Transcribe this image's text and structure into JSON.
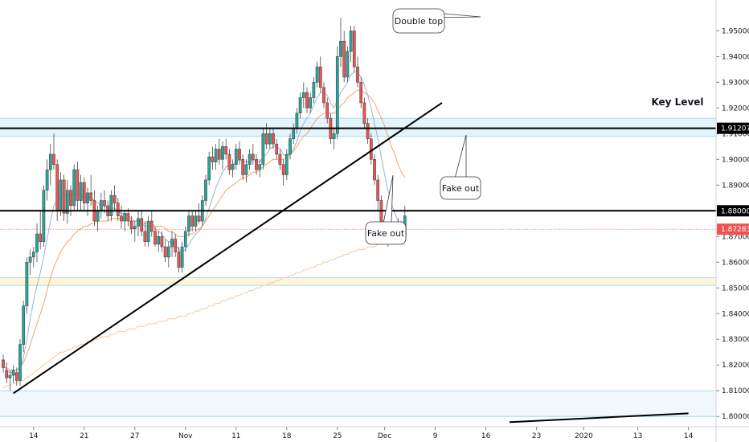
{
  "chart_data": {
    "type": "candlestick",
    "y_range": [
      1.796,
      1.962
    ],
    "y_ticks": [
      {
        "v": 1.95,
        "label": "1.95000"
      },
      {
        "v": 1.94,
        "label": "1.94000"
      },
      {
        "v": 1.93,
        "label": "1.93000"
      },
      {
        "v": 1.92,
        "label": "1.92000"
      },
      {
        "v": 1.91,
        "label": "1.91000"
      },
      {
        "v": 1.9,
        "label": "1.90000"
      },
      {
        "v": 1.89,
        "label": "1.89000"
      },
      {
        "v": 1.88,
        "label": "1.88000"
      },
      {
        "v": 1.87,
        "label": "1.87000"
      },
      {
        "v": 1.86,
        "label": "1.86000"
      },
      {
        "v": 1.85,
        "label": "1.85000"
      },
      {
        "v": 1.84,
        "label": "1.84000"
      },
      {
        "v": 1.83,
        "label": "1.83000"
      },
      {
        "v": 1.82,
        "label": "1.82000"
      },
      {
        "v": 1.81,
        "label": "1.81000"
      },
      {
        "v": 1.8,
        "label": "1.80000"
      }
    ],
    "x_ticks": [
      {
        "i": 9,
        "label": "14"
      },
      {
        "i": 24,
        "label": "21"
      },
      {
        "i": 39,
        "label": "27"
      },
      {
        "i": 54,
        "label": "Nov"
      },
      {
        "i": 69,
        "label": "11"
      },
      {
        "i": 84,
        "label": "18"
      },
      {
        "i": 99,
        "label": "25"
      },
      {
        "i": 113,
        "label": "Dec"
      },
      {
        "i": 128,
        "label": "9"
      },
      {
        "i": 143,
        "label": "16"
      },
      {
        "i": 158,
        "label": "23"
      },
      {
        "i": 172,
        "label": "2020"
      },
      {
        "i": 188,
        "label": "13"
      },
      {
        "i": 203,
        "label": "14"
      }
    ],
    "candles": [
      [
        1.822,
        1.824,
        1.817,
        1.819
      ],
      [
        1.818,
        1.821,
        1.813,
        1.815
      ],
      [
        1.815,
        1.818,
        1.81,
        1.816
      ],
      [
        1.816,
        1.82,
        1.813,
        1.818
      ],
      [
        1.817,
        1.819,
        1.812,
        1.814
      ],
      [
        1.814,
        1.83,
        1.812,
        1.828
      ],
      [
        1.828,
        1.845,
        1.825,
        1.843
      ],
      [
        1.843,
        1.862,
        1.84,
        1.86
      ],
      [
        1.86,
        1.865,
        1.855,
        1.862
      ],
      [
        1.862,
        1.866,
        1.858,
        1.864
      ],
      [
        1.864,
        1.875,
        1.86,
        1.871
      ],
      [
        1.871,
        1.88,
        1.865,
        1.868
      ],
      [
        1.868,
        1.89,
        1.866,
        1.888
      ],
      [
        1.888,
        1.9,
        1.884,
        1.896
      ],
      [
        1.896,
        1.906,
        1.89,
        1.902
      ],
      [
        1.902,
        1.91,
        1.896,
        1.898
      ],
      [
        1.898,
        1.9,
        1.876,
        1.88
      ],
      [
        1.88,
        1.895,
        1.878,
        1.892
      ],
      [
        1.892,
        1.894,
        1.876,
        1.879
      ],
      [
        1.879,
        1.892,
        1.875,
        1.888
      ],
      [
        1.888,
        1.89,
        1.878,
        1.882
      ],
      [
        1.882,
        1.898,
        1.88,
        1.896
      ],
      [
        1.896,
        1.899,
        1.88,
        1.884
      ],
      [
        1.884,
        1.894,
        1.88,
        1.891
      ],
      [
        1.891,
        1.893,
        1.88,
        1.883
      ],
      [
        1.883,
        1.889,
        1.878,
        1.887
      ],
      [
        1.887,
        1.894,
        1.882,
        1.884
      ],
      [
        1.884,
        1.888,
        1.874,
        1.876
      ],
      [
        1.876,
        1.882,
        1.872,
        1.88
      ],
      [
        1.88,
        1.887,
        1.877,
        1.884
      ],
      [
        1.884,
        1.888,
        1.879,
        1.882
      ],
      [
        1.882,
        1.884,
        1.876,
        1.878
      ],
      [
        1.878,
        1.888,
        1.876,
        1.886
      ],
      [
        1.886,
        1.89,
        1.88,
        1.883
      ],
      [
        1.883,
        1.885,
        1.876,
        1.878
      ],
      [
        1.878,
        1.882,
        1.873,
        1.876
      ],
      [
        1.876,
        1.88,
        1.872,
        1.879
      ],
      [
        1.879,
        1.881,
        1.874,
        1.876
      ],
      [
        1.876,
        1.878,
        1.871,
        1.873
      ],
      [
        1.873,
        1.876,
        1.868,
        1.874
      ],
      [
        1.874,
        1.88,
        1.87,
        1.877
      ],
      [
        1.877,
        1.88,
        1.87,
        1.872
      ],
      [
        1.872,
        1.876,
        1.866,
        1.868
      ],
      [
        1.868,
        1.878,
        1.866,
        1.876
      ],
      [
        1.876,
        1.88,
        1.87,
        1.872
      ],
      [
        1.872,
        1.874,
        1.866,
        1.867
      ],
      [
        1.867,
        1.872,
        1.864,
        1.87
      ],
      [
        1.87,
        1.872,
        1.864,
        1.866
      ],
      [
        1.866,
        1.869,
        1.86,
        1.862
      ],
      [
        1.862,
        1.868,
        1.858,
        1.866
      ],
      [
        1.866,
        1.872,
        1.862,
        1.869
      ],
      [
        1.869,
        1.871,
        1.862,
        1.864
      ],
      [
        1.864,
        1.866,
        1.856,
        1.858
      ],
      [
        1.858,
        1.868,
        1.856,
        1.866
      ],
      [
        1.866,
        1.874,
        1.864,
        1.872
      ],
      [
        1.872,
        1.88,
        1.87,
        1.878
      ],
      [
        1.878,
        1.88,
        1.872,
        1.874
      ],
      [
        1.874,
        1.88,
        1.872,
        1.878
      ],
      [
        1.878,
        1.883,
        1.875,
        1.876
      ],
      [
        1.876,
        1.886,
        1.874,
        1.884
      ],
      [
        1.884,
        1.894,
        1.882,
        1.892
      ],
      [
        1.892,
        1.903,
        1.89,
        1.901
      ],
      [
        1.901,
        1.905,
        1.896,
        1.899
      ],
      [
        1.899,
        1.906,
        1.896,
        1.904
      ],
      [
        1.904,
        1.908,
        1.898,
        1.9
      ],
      [
        1.9,
        1.907,
        1.896,
        1.905
      ],
      [
        1.905,
        1.908,
        1.9,
        1.902
      ],
      [
        1.902,
        1.904,
        1.894,
        1.896
      ],
      [
        1.896,
        1.9,
        1.893,
        1.898
      ],
      [
        1.898,
        1.906,
        1.896,
        1.904
      ],
      [
        1.904,
        1.907,
        1.898,
        1.9
      ],
      [
        1.9,
        1.902,
        1.892,
        1.894
      ],
      [
        1.894,
        1.9,
        1.891,
        1.898
      ],
      [
        1.898,
        1.904,
        1.896,
        1.902
      ],
      [
        1.902,
        1.906,
        1.898,
        1.9
      ],
      [
        1.9,
        1.902,
        1.894,
        1.896
      ],
      [
        1.896,
        1.9,
        1.893,
        1.898
      ],
      [
        1.898,
        1.912,
        1.896,
        1.91
      ],
      [
        1.91,
        1.914,
        1.904,
        1.906
      ],
      [
        1.906,
        1.912,
        1.904,
        1.91
      ],
      [
        1.91,
        1.912,
        1.904,
        1.906
      ],
      [
        1.906,
        1.908,
        1.9,
        1.902
      ],
      [
        1.902,
        1.904,
        1.896,
        1.898
      ],
      [
        1.898,
        1.9,
        1.89,
        1.894
      ],
      [
        1.894,
        1.904,
        1.892,
        1.902
      ],
      [
        1.902,
        1.91,
        1.9,
        1.908
      ],
      [
        1.908,
        1.914,
        1.906,
        1.912
      ],
      [
        1.912,
        1.92,
        1.91,
        1.918
      ],
      [
        1.918,
        1.926,
        1.916,
        1.924
      ],
      [
        1.924,
        1.93,
        1.92,
        1.926
      ],
      [
        1.926,
        1.928,
        1.918,
        1.92
      ],
      [
        1.92,
        1.926,
        1.918,
        1.924
      ],
      [
        1.924,
        1.932,
        1.922,
        1.93
      ],
      [
        1.93,
        1.938,
        1.928,
        1.936
      ],
      [
        1.936,
        1.94,
        1.926,
        1.928
      ],
      [
        1.928,
        1.93,
        1.92,
        1.922
      ],
      [
        1.922,
        1.924,
        1.914,
        1.916
      ],
      [
        1.916,
        1.918,
        1.906,
        1.908
      ],
      [
        1.908,
        1.912,
        1.904,
        1.91
      ],
      [
        1.91,
        1.944,
        1.908,
        1.94
      ],
      [
        1.94,
        1.955,
        1.936,
        1.946
      ],
      [
        1.946,
        1.95,
        1.93,
        1.932
      ],
      [
        1.932,
        1.944,
        1.93,
        1.942
      ],
      [
        1.942,
        1.952,
        1.938,
        1.95
      ],
      [
        1.95,
        1.952,
        1.934,
        1.936
      ],
      [
        1.936,
        1.94,
        1.928,
        1.93
      ],
      [
        1.93,
        1.932,
        1.92,
        1.922
      ],
      [
        1.922,
        1.924,
        1.912,
        1.914
      ],
      [
        1.914,
        1.916,
        1.906,
        1.908
      ],
      [
        1.908,
        1.91,
        1.898,
        1.9
      ],
      [
        1.9,
        1.902,
        1.89,
        1.892
      ],
      [
        1.892,
        1.894,
        1.88,
        1.884
      ],
      [
        1.884,
        1.886,
        1.874,
        1.876
      ],
      [
        1.876,
        1.878,
        1.867,
        1.869
      ],
      [
        1.869,
        1.874,
        1.866,
        1.872
      ],
      [
        1.872,
        1.876,
        1.868,
        1.87
      ],
      [
        1.87,
        1.875,
        1.867,
        1.873
      ],
      [
        1.873,
        1.877,
        1.87,
        1.874
      ],
      [
        1.874,
        1.876,
        1.868,
        1.87
      ],
      [
        1.87,
        1.882,
        1.868,
        1.878
      ]
    ],
    "ma_fast": [
      1.82,
      1.818,
      1.817,
      1.817,
      1.816,
      1.818,
      1.823,
      1.83,
      1.838,
      1.845,
      1.851,
      1.856,
      1.862,
      1.869,
      1.876,
      1.882,
      1.884,
      1.886,
      1.886,
      1.886,
      1.886,
      1.887,
      1.886,
      1.886,
      1.885,
      1.885,
      1.885,
      1.884,
      1.883,
      1.882,
      1.882,
      1.881,
      1.881,
      1.881,
      1.88,
      1.879,
      1.879,
      1.878,
      1.877,
      1.876,
      1.876,
      1.875,
      1.874,
      1.874,
      1.874,
      1.873,
      1.872,
      1.871,
      1.869,
      1.868,
      1.868,
      1.867,
      1.865,
      1.864,
      1.865,
      1.867,
      1.869,
      1.871,
      1.872,
      1.874,
      1.877,
      1.881,
      1.885,
      1.889,
      1.892,
      1.895,
      1.897,
      1.898,
      1.898,
      1.899,
      1.9,
      1.899,
      1.899,
      1.899,
      1.9,
      1.899,
      1.899,
      1.901,
      1.902,
      1.904,
      1.905,
      1.905,
      1.904,
      1.902,
      1.901,
      1.902,
      1.904,
      1.907,
      1.911,
      1.914,
      1.916,
      1.918,
      1.921,
      1.924,
      1.926,
      1.926,
      1.925,
      1.922,
      1.92,
      1.923,
      1.926,
      1.928,
      1.93,
      1.933,
      1.934,
      1.934,
      1.932,
      1.929,
      1.925,
      1.92,
      1.914,
      1.908,
      1.901,
      1.894,
      1.888,
      1.883,
      1.879,
      1.876,
      1.874,
      1.874
    ],
    "ma_mid": [
      1.819,
      1.819,
      1.818,
      1.818,
      1.818,
      1.819,
      1.821,
      1.824,
      1.828,
      1.832,
      1.836,
      1.84,
      1.844,
      1.849,
      1.854,
      1.858,
      1.861,
      1.864,
      1.866,
      1.868,
      1.869,
      1.871,
      1.872,
      1.873,
      1.874,
      1.874,
      1.875,
      1.875,
      1.876,
      1.876,
      1.876,
      1.876,
      1.877,
      1.877,
      1.877,
      1.877,
      1.877,
      1.877,
      1.876,
      1.876,
      1.876,
      1.876,
      1.875,
      1.875,
      1.875,
      1.874,
      1.874,
      1.874,
      1.873,
      1.872,
      1.872,
      1.871,
      1.87,
      1.87,
      1.87,
      1.871,
      1.871,
      1.872,
      1.873,
      1.874,
      1.876,
      1.878,
      1.88,
      1.882,
      1.884,
      1.886,
      1.888,
      1.889,
      1.89,
      1.891,
      1.892,
      1.893,
      1.893,
      1.894,
      1.895,
      1.895,
      1.896,
      1.897,
      1.898,
      1.899,
      1.9,
      1.9,
      1.9,
      1.9,
      1.901,
      1.902,
      1.903,
      1.905,
      1.907,
      1.909,
      1.91,
      1.912,
      1.914,
      1.916,
      1.917,
      1.918,
      1.918,
      1.918,
      1.918,
      1.919,
      1.921,
      1.922,
      1.924,
      1.925,
      1.926,
      1.927,
      1.927,
      1.926,
      1.925,
      1.924,
      1.922,
      1.919,
      1.916,
      1.913,
      1.909,
      1.905,
      1.902,
      1.898,
      1.895,
      1.893
    ],
    "ma_slow": [
      1.811,
      1.812,
      1.812,
      1.813,
      1.813,
      1.814,
      1.814,
      1.815,
      1.816,
      1.817,
      1.818,
      1.819,
      1.82,
      1.821,
      1.822,
      1.823,
      1.824,
      1.825,
      1.825,
      1.826,
      1.826,
      1.827,
      1.827,
      1.828,
      1.828,
      1.829,
      1.829,
      1.83,
      1.83,
      1.831,
      1.831,
      1.831,
      1.832,
      1.832,
      1.833,
      1.833,
      1.833,
      1.834,
      1.834,
      1.834,
      1.835,
      1.835,
      1.835,
      1.836,
      1.836,
      1.836,
      1.837,
      1.837,
      1.837,
      1.838,
      1.838,
      1.838,
      1.839,
      1.839,
      1.839,
      1.84,
      1.84,
      1.841,
      1.841,
      1.842,
      1.842,
      1.843,
      1.843,
      1.844,
      1.844,
      1.845,
      1.845,
      1.846,
      1.846,
      1.847,
      1.847,
      1.848,
      1.848,
      1.849,
      1.849,
      1.85,
      1.85,
      1.851,
      1.851,
      1.852,
      1.852,
      1.853,
      1.853,
      1.854,
      1.854,
      1.855,
      1.855,
      1.856,
      1.856,
      1.857,
      1.857,
      1.858,
      1.858,
      1.859,
      1.859,
      1.86,
      1.86,
      1.861,
      1.861,
      1.862,
      1.862,
      1.863,
      1.863,
      1.864,
      1.864,
      1.865,
      1.865,
      1.865,
      1.866,
      1.866,
      1.866,
      1.867,
      1.867,
      1.867,
      1.867,
      1.867,
      1.867,
      1.867,
      1.867,
      1.867
    ],
    "horizontal_lines": [
      {
        "v": 1.9121,
        "label": "1.91207",
        "style": "bold"
      },
      {
        "v": 1.88,
        "label": "1.88000",
        "style": "bold"
      }
    ],
    "current_price": {
      "v": 1.87283,
      "label": "1.87283",
      "color": "#ef5350"
    },
    "zones": [
      {
        "from": 1.909,
        "to": 1.916,
        "color": "#e3f4fb",
        "border": "#8fd3ec"
      },
      {
        "from": 1.851,
        "to": 1.854,
        "color": "#fff6d9",
        "border": "#8fd3ec"
      },
      {
        "from": 1.8,
        "to": 1.81,
        "color": "#f0f8fc",
        "border": "#8fd3ec"
      }
    ],
    "trendlines": [
      {
        "from": {
          "i": 3,
          "v": 1.809
        },
        "to": {
          "i": 130,
          "v": 1.922
        }
      },
      {
        "from": {
          "i": 150,
          "v": 1.7978
        },
        "to": {
          "i": 203,
          "v": 1.8012
        }
      }
    ],
    "annotations": [
      {
        "text": "Double top",
        "kind": "callout"
      },
      {
        "text": "Fake out",
        "kind": "callout"
      },
      {
        "text": "Fake out",
        "kind": "callout"
      },
      {
        "text": "Key Level",
        "kind": "label"
      }
    ],
    "colors": {
      "up": "#26a69a",
      "down": "#ef5350",
      "ma_fast": "#9ab3d5",
      "ma_mid": "#f5a46a",
      "ma_slow": "#f7c99f"
    }
  }
}
